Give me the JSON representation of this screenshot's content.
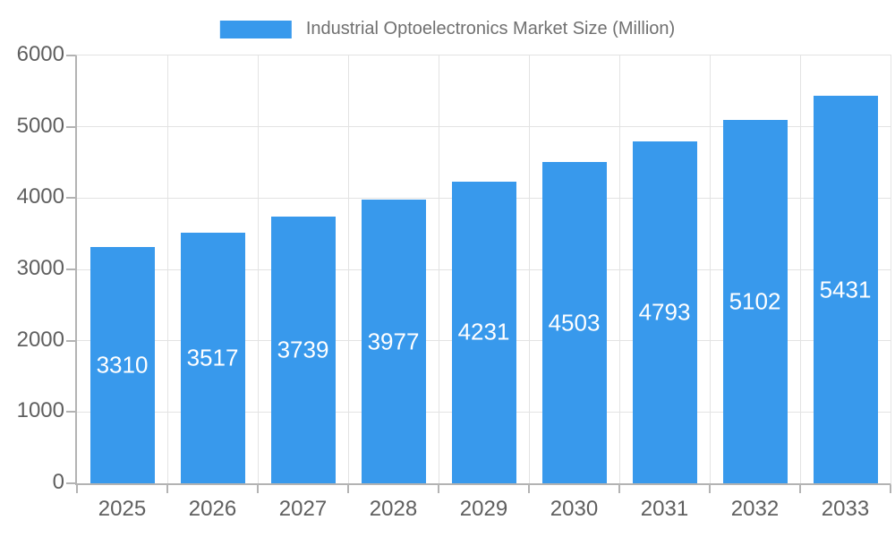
{
  "legend": {
    "label": "Industrial Optoelectronics Market Size (Million)"
  },
  "chart_data": {
    "type": "bar",
    "title": "Industrial Optoelectronics Market Size (Million)",
    "categories": [
      "2025",
      "2026",
      "2027",
      "2028",
      "2029",
      "2030",
      "2031",
      "2032",
      "2033"
    ],
    "series": [
      {
        "name": "Industrial Optoelectronics Market Size (Million)",
        "values": [
          3310,
          3517,
          3739,
          3977,
          4231,
          4503,
          4793,
          5102,
          5431
        ]
      }
    ],
    "xlabel": "",
    "ylabel": "",
    "ylim": [
      0,
      6000
    ],
    "yticks": [
      0,
      1000,
      2000,
      3000,
      4000,
      5000,
      6000
    ],
    "grid": true,
    "legend_position": "top-center",
    "value_labels": "inside-center-white",
    "colors": {
      "bar": "#3899EC",
      "grid": "#E3E3E3",
      "axis": "#B3B3B3",
      "tick_text": "#5F5F5F",
      "legend_text": "#707070",
      "value_text": "#FFFFFF",
      "background": "#FFFFFF"
    }
  }
}
